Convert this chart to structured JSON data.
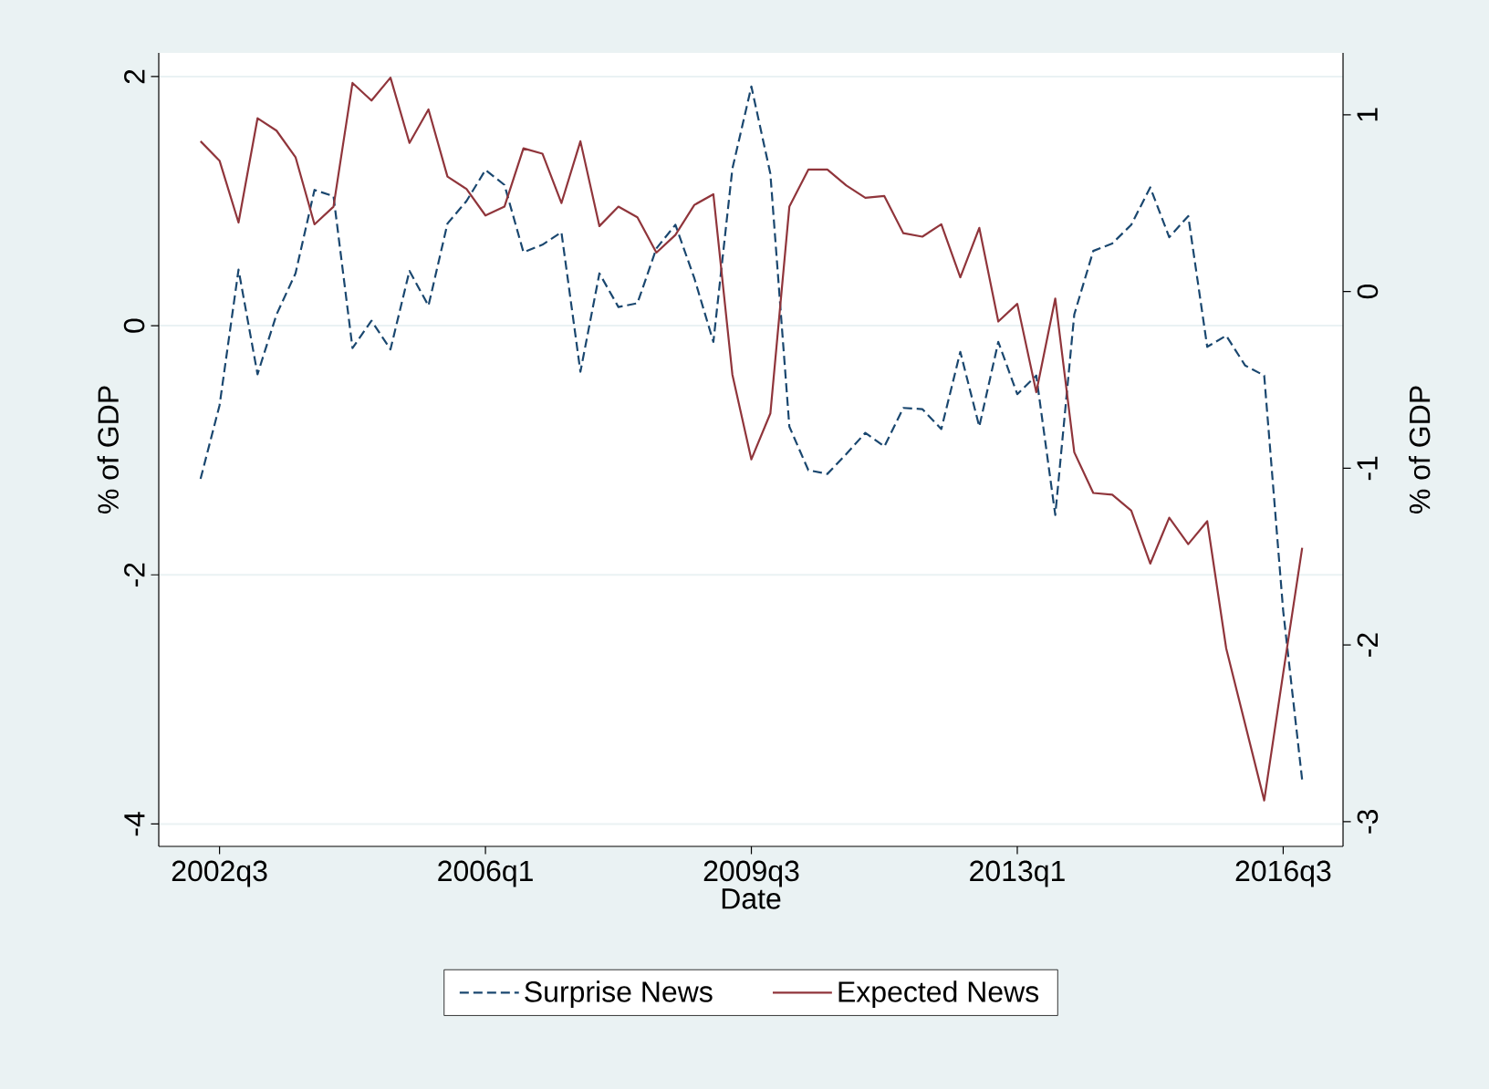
{
  "chart_data": {
    "type": "line",
    "xlabel": "Date",
    "ylabel": "% of GDP",
    "y2label": "% of GDP",
    "categories": [
      null,
      "2002q3",
      null,
      null,
      null,
      null,
      null,
      null,
      null,
      null,
      null,
      null,
      null,
      null,
      null,
      "2006q1",
      null,
      null,
      null,
      null,
      null,
      null,
      null,
      null,
      null,
      null,
      null,
      null,
      null,
      "2009q3",
      null,
      null,
      null,
      null,
      null,
      null,
      null,
      null,
      null,
      null,
      null,
      null,
      null,
      "2013q1",
      null,
      null,
      null,
      null,
      null,
      null,
      null,
      null,
      null,
      null,
      null,
      null,
      null,
      "2016q3",
      null
    ],
    "ylim": [
      -4.18,
      2.19
    ],
    "yticks": [
      2,
      0,
      -2,
      -4
    ],
    "y2lim": [
      -3.14,
      1.35
    ],
    "y2ticks": [
      1,
      0,
      -1,
      -2,
      -3
    ],
    "grid": "y",
    "legend": "bottom",
    "series": [
      {
        "name": "Surprise News",
        "color": "#1a476f",
        "line_style": "dashed",
        "axis": "y",
        "values": [
          -1.23,
          -0.64,
          0.45,
          -0.39,
          0.09,
          0.42,
          1.09,
          1.04,
          -0.18,
          0.04,
          -0.19,
          0.44,
          0.16,
          0.82,
          1.0,
          1.25,
          1.13,
          0.59,
          0.65,
          0.75,
          -0.37,
          0.42,
          0.15,
          0.18,
          0.62,
          0.81,
          0.38,
          -0.13,
          1.26,
          1.92,
          1.22,
          -0.81,
          -1.16,
          -1.19,
          -1.03,
          -0.86,
          -0.97,
          -0.66,
          -0.67,
          -0.83,
          -0.21,
          -0.81,
          -0.13,
          -0.55,
          -0.4,
          -1.52,
          0.09,
          0.6,
          0.66,
          0.81,
          1.11,
          0.71,
          0.88,
          -0.17,
          -0.08,
          -0.32,
          -0.4,
          -2.29,
          -3.65
        ]
      },
      {
        "name": "Expected News",
        "color": "#90353b",
        "line_style": "solid",
        "axis": "y2",
        "values": [
          0.85,
          0.74,
          0.39,
          0.98,
          0.91,
          0.76,
          0.38,
          0.48,
          1.18,
          1.08,
          1.21,
          0.84,
          1.03,
          0.65,
          0.58,
          0.43,
          0.48,
          0.81,
          0.78,
          0.5,
          0.85,
          0.37,
          0.48,
          0.42,
          0.22,
          0.32,
          0.49,
          0.55,
          -0.47,
          -0.95,
          -0.69,
          0.48,
          0.69,
          0.69,
          0.6,
          0.53,
          0.54,
          0.33,
          0.31,
          0.38,
          0.08,
          0.36,
          -0.17,
          -0.07,
          -0.57,
          -0.04,
          -0.91,
          -1.14,
          -1.15,
          -1.24,
          -1.54,
          -1.28,
          -1.43,
          -1.3,
          -2.02,
          -2.45,
          -2.88,
          -2.16,
          -1.45
        ]
      }
    ]
  }
}
